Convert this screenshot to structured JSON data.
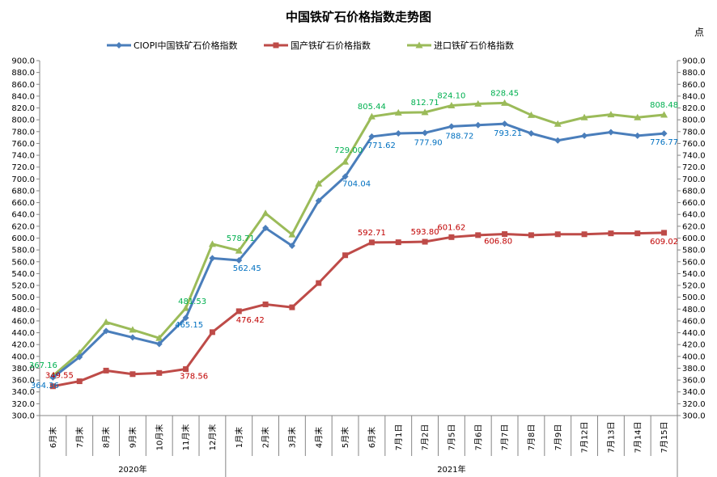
{
  "chart_data": {
    "type": "line",
    "title": "中国铁矿石价格指数走势图",
    "unit": "点",
    "ylim": [
      300,
      900
    ],
    "ytick_step": 20,
    "categories": [
      "6月末",
      "7月末",
      "8月末",
      "9月末",
      "10月末",
      "11月末",
      "12月末",
      "1月末",
      "2月末",
      "3月末",
      "4月末",
      "5月末",
      "6月末",
      "7月1日",
      "7月2日",
      "7月5日",
      "7月6日",
      "7月7日",
      "7月8日",
      "7月9日",
      "7月12日",
      "7月13日",
      "7月14日",
      "7月15日"
    ],
    "groups": [
      {
        "label": "2020年",
        "start": 0,
        "end": 6
      },
      {
        "label": "2021年",
        "start": 7,
        "end": 23
      }
    ],
    "series": [
      {
        "name": "CIOPI中国铁矿石价格指数",
        "color": "#4a7ebb",
        "marker": "diamond",
        "values": [
          364.36,
          399,
          443,
          432,
          421,
          465.15,
          566,
          562.45,
          617,
          587,
          663,
          704.04,
          771.62,
          777,
          777.9,
          788.72,
          791,
          793.21,
          777,
          765,
          773,
          779,
          773,
          776.77
        ],
        "labels": [
          {
            "i": 0,
            "text": "364.36"
          },
          {
            "i": 5,
            "text": "465.15"
          },
          {
            "i": 7,
            "text": "562.45"
          },
          {
            "i": 11,
            "text": "704.04"
          },
          {
            "i": 12,
            "text": "771.62"
          },
          {
            "i": 14,
            "text": "777.90"
          },
          {
            "i": 15,
            "text": "788.72"
          },
          {
            "i": 17,
            "text": "793.21"
          },
          {
            "i": 23,
            "text": "776.77"
          }
        ]
      },
      {
        "name": "国产铁矿石价格指数",
        "color": "#be4b48",
        "marker": "square",
        "values": [
          349.55,
          358,
          376,
          370,
          372,
          378.56,
          441,
          476.42,
          488,
          483,
          524,
          571,
          592.71,
          593,
          593.8,
          601.62,
          605,
          606.8,
          605,
          606.5,
          606.5,
          608,
          608,
          609.02
        ],
        "labels": [
          {
            "i": 0,
            "text": "349.55"
          },
          {
            "i": 5,
            "text": "378.56"
          },
          {
            "i": 7,
            "text": "476.42"
          },
          {
            "i": 12,
            "text": "592.71"
          },
          {
            "i": 14,
            "text": "593.80"
          },
          {
            "i": 15,
            "text": "601.62"
          },
          {
            "i": 17,
            "text": "606.80"
          },
          {
            "i": 23,
            "text": "609.02"
          }
        ]
      },
      {
        "name": "进口铁矿石价格指数",
        "color": "#9bbb59",
        "marker": "triangle",
        "values": [
          367.16,
          406,
          458,
          445,
          431,
          481.53,
          590,
          578.71,
          642,
          606,
          692,
          729.0,
          805.44,
          812,
          812.71,
          824.1,
          827,
          828.45,
          808,
          793,
          804,
          809,
          804,
          808.48
        ],
        "labels": [
          {
            "i": 0,
            "text": "367.16"
          },
          {
            "i": 5,
            "text": "481.53"
          },
          {
            "i": 7,
            "text": "578.71"
          },
          {
            "i": 11,
            "text": "729.00"
          },
          {
            "i": 12,
            "text": "805.44"
          },
          {
            "i": 14,
            "text": "812.71"
          },
          {
            "i": 15,
            "text": "824.10"
          },
          {
            "i": 17,
            "text": "828.45"
          },
          {
            "i": 23,
            "text": "808.48"
          }
        ]
      }
    ],
    "label_colors": [
      "#0070c0",
      "#c00000",
      "#00b050"
    ],
    "legend_position": "top",
    "grid": false
  }
}
